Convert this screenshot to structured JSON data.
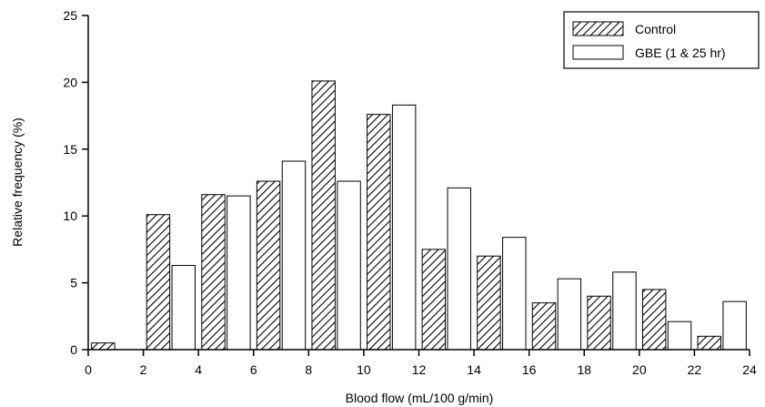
{
  "chart_data": {
    "type": "bar",
    "xlabel": "Blood flow (mL/100 g/min)",
    "ylabel": "Relative frequency (%)",
    "xlim": [
      0,
      24
    ],
    "ylim": [
      0,
      25
    ],
    "xticks": [
      0,
      2,
      4,
      6,
      8,
      10,
      12,
      14,
      16,
      18,
      20,
      22,
      24
    ],
    "yticks": [
      0,
      5,
      10,
      15,
      20,
      25
    ],
    "grid": false,
    "legend_position": "top-right",
    "bin_width": 2,
    "bin_starts": [
      0,
      2,
      4,
      6,
      8,
      10,
      12,
      14,
      16,
      18,
      20,
      22
    ],
    "series": [
      {
        "name": "Control",
        "pattern": "hatched",
        "values": [
          0.5,
          10.1,
          11.6,
          12.6,
          20.1,
          17.6,
          7.5,
          7.0,
          3.5,
          4.0,
          4.5,
          1.0
        ]
      },
      {
        "name": "GBE (1 & 25 hr)",
        "pattern": "open",
        "values": [
          0.0,
          6.3,
          11.5,
          14.1,
          12.6,
          18.3,
          12.1,
          8.4,
          5.3,
          5.8,
          2.1,
          3.6
        ]
      }
    ]
  }
}
